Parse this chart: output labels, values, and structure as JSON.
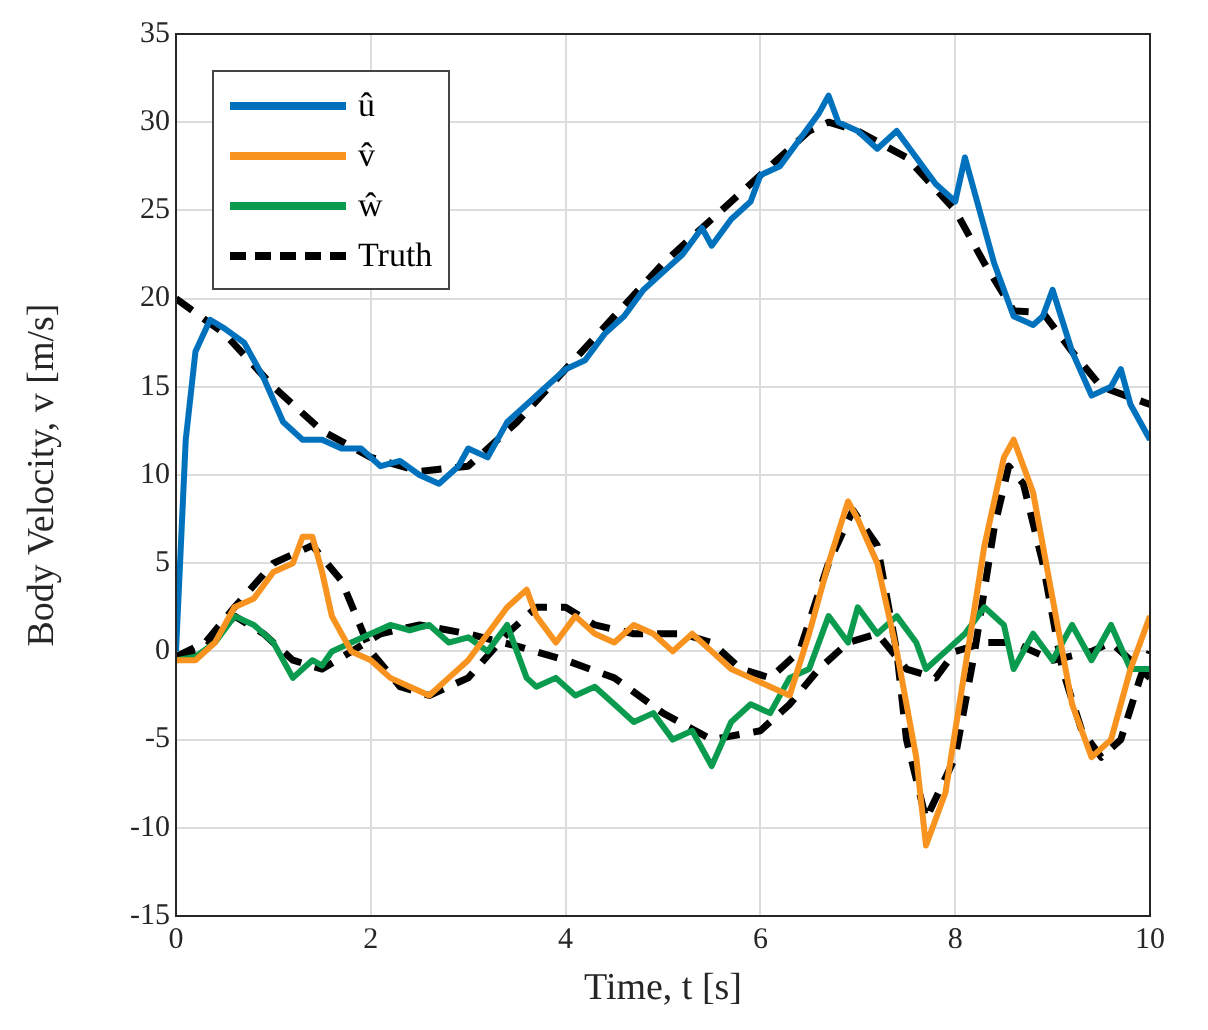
{
  "chart_data": {
    "type": "line",
    "xlabel": "Time, t [s]",
    "ylabel": "Body Velocity, v [m/s]",
    "xlim": [
      0,
      10
    ],
    "xticks": [
      0,
      2,
      4,
      6,
      8,
      10
    ],
    "ylim": [
      -15,
      35
    ],
    "yticks": [
      -15,
      -10,
      -5,
      0,
      5,
      10,
      15,
      20,
      25,
      30,
      35
    ],
    "grid": true,
    "legend": "top left",
    "marker": "none",
    "series": [
      {
        "name": "û",
        "color": "#0072bd",
        "line_style": "solid",
        "x": [
          0,
          0.1,
          0.2,
          0.35,
          0.5,
          0.7,
          0.9,
          1.1,
          1.3,
          1.5,
          1.7,
          1.9,
          2.1,
          2.3,
          2.5,
          2.7,
          2.9,
          3.0,
          3.2,
          3.4,
          3.6,
          3.8,
          4.0,
          4.2,
          4.4,
          4.6,
          4.8,
          5.0,
          5.2,
          5.4,
          5.5,
          5.7,
          5.9,
          6.0,
          6.2,
          6.4,
          6.6,
          6.7,
          6.8,
          7.0,
          7.2,
          7.4,
          7.6,
          7.8,
          8.0,
          8.1,
          8.2,
          8.4,
          8.6,
          8.8,
          8.9,
          9.0,
          9.2,
          9.4,
          9.6,
          9.7,
          9.8,
          10
        ],
        "values": [
          0,
          12,
          17,
          18.8,
          18.3,
          17.5,
          15.5,
          13,
          12,
          12,
          11.5,
          11.5,
          10.5,
          10.8,
          10,
          9.5,
          10.5,
          11.5,
          11,
          13,
          14,
          15,
          16,
          16.5,
          18,
          19,
          20.5,
          21.5,
          22.5,
          24,
          23,
          24.5,
          25.5,
          27,
          27.5,
          29,
          30.5,
          31.5,
          30,
          29.5,
          28.5,
          29.5,
          28,
          26.5,
          25.5,
          28,
          26,
          22,
          19,
          18.5,
          19,
          20.5,
          17,
          14.5,
          15,
          16,
          14,
          12
        ]
      },
      {
        "name": "v̂",
        "color": "#f7931e",
        "line_style": "solid",
        "x": [
          0,
          0.2,
          0.4,
          0.6,
          0.8,
          1.0,
          1.2,
          1.3,
          1.4,
          1.5,
          1.6,
          1.8,
          2.0,
          2.2,
          2.4,
          2.6,
          2.8,
          3.0,
          3.2,
          3.4,
          3.6,
          3.7,
          3.9,
          4.1,
          4.3,
          4.5,
          4.7,
          4.9,
          5.1,
          5.3,
          5.5,
          5.7,
          5.9,
          6.1,
          6.3,
          6.5,
          6.7,
          6.9,
          7.0,
          7.2,
          7.4,
          7.6,
          7.7,
          7.9,
          8.1,
          8.3,
          8.5,
          8.6,
          8.8,
          9.0,
          9.2,
          9.4,
          9.6,
          9.8,
          10
        ],
        "values": [
          -0.5,
          -0.5,
          0.5,
          2.5,
          3,
          4.5,
          5,
          6.5,
          6.5,
          4.5,
          2,
          0,
          -0.5,
          -1.5,
          -2,
          -2.5,
          -1.5,
          -0.5,
          1,
          2.5,
          3.5,
          2,
          0.5,
          2,
          1,
          0.5,
          1.5,
          1,
          0,
          1,
          0,
          -1,
          -1.5,
          -2,
          -2.5,
          1,
          5,
          8.5,
          7.5,
          5,
          0,
          -6,
          -11,
          -8,
          -1,
          6,
          11,
          12,
          9,
          3,
          -3,
          -6,
          -5,
          -1,
          2
        ]
      },
      {
        "name": "ŵ",
        "color": "#0a9b4f",
        "line_style": "solid",
        "x": [
          0,
          0.2,
          0.4,
          0.6,
          0.8,
          1.0,
          1.2,
          1.3,
          1.4,
          1.5,
          1.6,
          1.8,
          2.0,
          2.2,
          2.4,
          2.6,
          2.8,
          3.0,
          3.2,
          3.4,
          3.6,
          3.7,
          3.9,
          4.1,
          4.3,
          4.5,
          4.7,
          4.9,
          5.1,
          5.3,
          5.5,
          5.7,
          5.9,
          6.1,
          6.3,
          6.5,
          6.7,
          6.9,
          7.0,
          7.2,
          7.4,
          7.6,
          7.7,
          7.9,
          8.1,
          8.3,
          8.5,
          8.6,
          8.8,
          9.0,
          9.2,
          9.4,
          9.6,
          9.8,
          10
        ],
        "values": [
          -0.5,
          -0.3,
          0.5,
          2,
          1.5,
          0.5,
          -1.5,
          -1,
          -0.5,
          -0.8,
          0,
          0.5,
          1,
          1.5,
          1.2,
          1.5,
          0.5,
          0.8,
          0,
          1.5,
          -1.5,
          -2,
          -1.5,
          -2.5,
          -2,
          -3,
          -4,
          -3.5,
          -5,
          -4.5,
          -6.5,
          -4,
          -3,
          -3.5,
          -1.5,
          -1,
          2,
          0.5,
          2.5,
          1,
          2,
          0.5,
          -1,
          0,
          1,
          2.5,
          1.5,
          -1,
          1,
          -0.5,
          1.5,
          -0.5,
          1.5,
          -1,
          -1
        ]
      },
      {
        "name": "Truth",
        "color": "#000000",
        "line_style": "dashed",
        "x": [
          0,
          0.5,
          1,
          1.5,
          2,
          2.5,
          3,
          3.5,
          4,
          4.5,
          5,
          5.5,
          6,
          6.5,
          6.7,
          7,
          7.5,
          8,
          8.3,
          8.6,
          8.9,
          9.2,
          9.5,
          10
        ],
        "values": [
          20,
          18,
          15,
          12.5,
          11,
          10.2,
          10.5,
          13,
          16,
          19,
          22,
          24.5,
          27,
          29.5,
          30,
          29.5,
          28,
          25,
          22,
          19.3,
          19.2,
          17,
          15,
          14
        ]
      },
      {
        "color": "#000000",
        "line_style": "dashed",
        "x": [
          0,
          0.3,
          0.6,
          1,
          1.4,
          1.7,
          2,
          2.3,
          2.6,
          3,
          3.4,
          3.7,
          4,
          4.3,
          4.7,
          5.2,
          5.5,
          5.8,
          6.1,
          6.4,
          6.7,
          6.95,
          7.2,
          7.4,
          7.5,
          7.7,
          8.0,
          8.2,
          8.4,
          8.55,
          8.7,
          8.9,
          9.1,
          9.3,
          9.5,
          9.7,
          9.9,
          10
        ],
        "values": [
          -0.3,
          0.5,
          2.5,
          5,
          6,
          4,
          0,
          -2,
          -2.5,
          -1.5,
          1,
          2.5,
          2.5,
          1.5,
          1,
          1,
          0.5,
          -1,
          -1.5,
          0,
          5,
          8,
          6,
          0,
          -5,
          -9.5,
          -6,
          0,
          7,
          10.5,
          9.5,
          5,
          -1,
          -4.5,
          -6,
          -5,
          -1.5,
          0
        ]
      },
      {
        "color": "#000000",
        "line_style": "dashed",
        "x": [
          0,
          0.3,
          0.6,
          0.9,
          1.2,
          1.5,
          1.8,
          2.1,
          2.5,
          3,
          3.5,
          4,
          4.5,
          5,
          5.5,
          6,
          6.3,
          6.6,
          6.9,
          7.2,
          7.5,
          7.8,
          8,
          8.3,
          8.6,
          9,
          9.4,
          9.6,
          10
        ],
        "values": [
          -0.3,
          0.2,
          2,
          1,
          -0.5,
          -1,
          0,
          1,
          1.5,
          1,
          0.3,
          -0.5,
          -1.5,
          -3.5,
          -5,
          -4.5,
          -3,
          -1,
          0.5,
          1,
          -1,
          -1.5,
          0,
          0.5,
          0.5,
          -0.5,
          0,
          0.5,
          -1.5
        ]
      }
    ]
  }
}
